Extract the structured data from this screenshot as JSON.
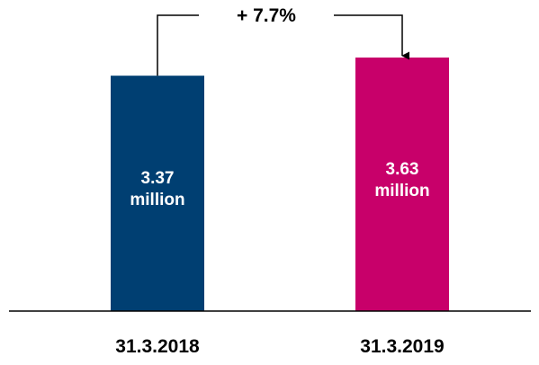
{
  "chart_data": {
    "type": "bar",
    "categories": [
      "31.3.2018",
      "31.3.2019"
    ],
    "values": [
      3.37,
      3.63
    ],
    "value_labels": [
      "3.37 million",
      "3.63 million"
    ],
    "colors": [
      "#003f72",
      "#c8006a"
    ],
    "annotation": "+ 7.7%"
  }
}
